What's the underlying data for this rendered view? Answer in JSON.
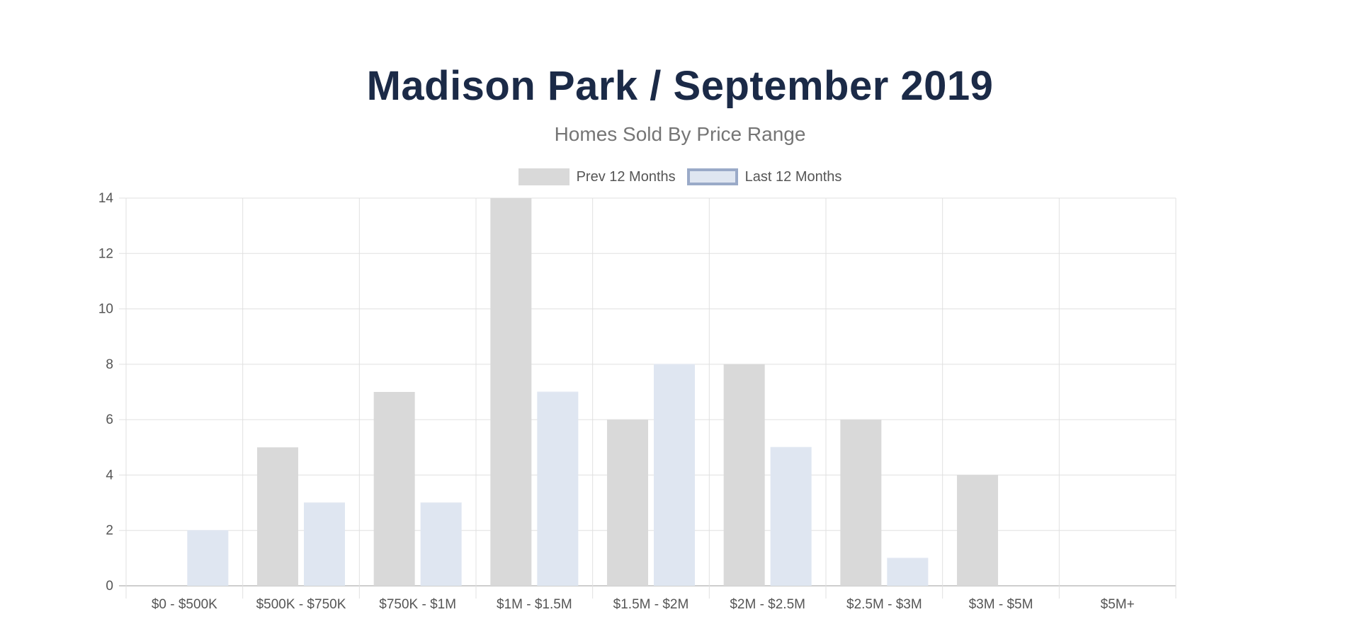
{
  "chart_data": {
    "type": "bar",
    "title": "Madison Park / September 2019",
    "subtitle": "Homes Sold By Price Range",
    "xlabel": "",
    "ylabel": "",
    "ylim": [
      0,
      14
    ],
    "yticks": [
      0,
      2,
      4,
      6,
      8,
      10,
      12,
      14
    ],
    "grid": true,
    "legend_position": "top-center",
    "categories": [
      "$0 - $500K",
      "$500K - $750K",
      "$750K - $1M",
      "$1M - $1.5M",
      "$1.5M - $2M",
      "$2M - $2.5M",
      "$2.5M - $3M",
      "$3M - $5M",
      "$5M+"
    ],
    "series": [
      {
        "name": "Prev 12 Months",
        "color": "#d9d9d9",
        "border": "#d9d9d9",
        "values": [
          0,
          5,
          7,
          14,
          6,
          8,
          6,
          4,
          0
        ]
      },
      {
        "name": "Last 12 Months",
        "color": "#dfe6f1",
        "border": "#9aaac8",
        "values": [
          2,
          3,
          3,
          7,
          8,
          5,
          1,
          0,
          0
        ]
      }
    ]
  }
}
